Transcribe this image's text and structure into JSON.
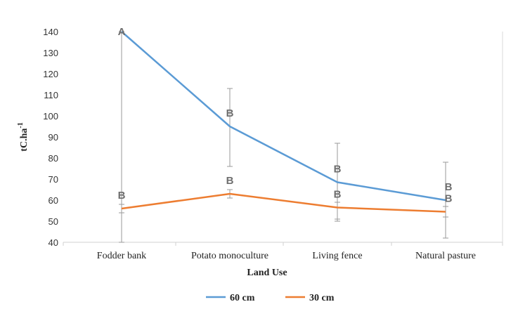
{
  "chart_data": {
    "type": "line",
    "title": "",
    "xlabel": "Land Use",
    "ylabel": "tC.ha",
    "ylabel_sup": "-1",
    "ylim": [
      40,
      140
    ],
    "yticks": [
      "40",
      "50",
      "60",
      "70",
      "80",
      "90",
      "100",
      "110",
      "120",
      "130",
      "140"
    ],
    "categories": [
      "Fodder bank",
      "Potato monoculture",
      "Living fence",
      "Natural pasture"
    ],
    "legend_position": "bottom",
    "grid": false,
    "series": [
      {
        "name": "60 cm",
        "color": "#5b9bd5",
        "values": [
          140,
          95,
          68.5,
          60
        ],
        "err_low": [
          40,
          76,
          50,
          42
        ],
        "err_high": [
          140,
          113,
          87,
          78
        ],
        "letters": [
          "A",
          "B",
          "B",
          "B"
        ]
      },
      {
        "name": "30 cm",
        "color": "#ed7d31",
        "values": [
          56,
          63,
          56.5,
          54.5
        ],
        "err_low": [
          54,
          61,
          51,
          52
        ],
        "err_high": [
          58,
          65,
          59,
          57
        ],
        "letters": [
          "B",
          "B",
          "B",
          "B"
        ]
      }
    ]
  }
}
